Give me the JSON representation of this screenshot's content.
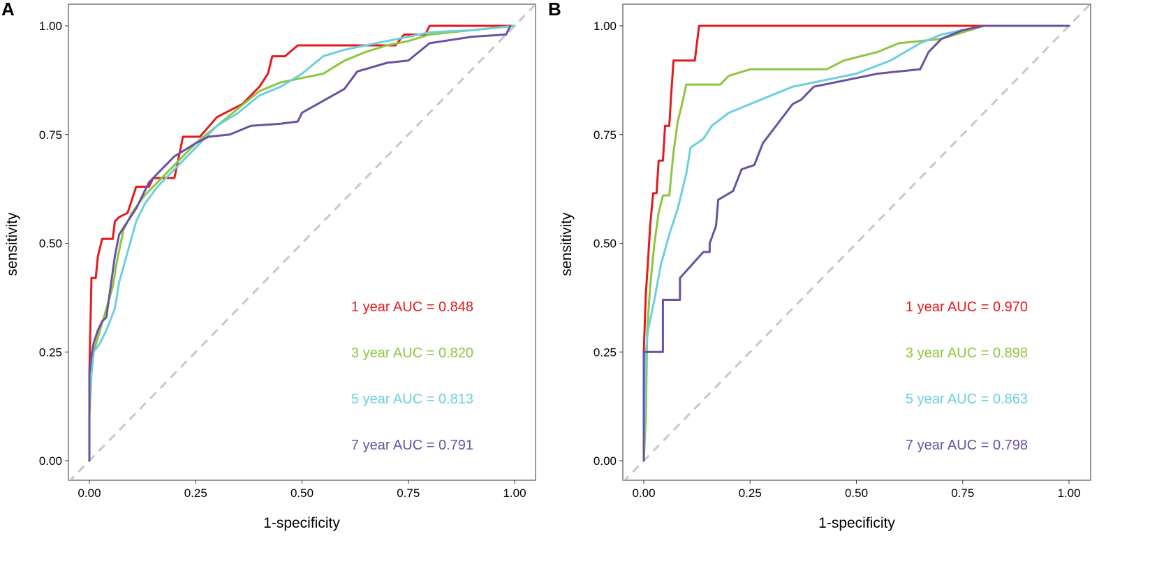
{
  "chart_data": [
    {
      "panel_label": "A",
      "type": "line",
      "xlabel": "1-specificity",
      "ylabel": "sensitivity",
      "xlim": [
        0,
        1
      ],
      "ylim": [
        0,
        1
      ],
      "x_ticks": [
        "0.00",
        "0.25",
        "0.50",
        "0.75",
        "1.00"
      ],
      "y_ticks": [
        "0.00",
        "0.25",
        "0.50",
        "0.75",
        "1.00"
      ],
      "grid": false,
      "reference_line": "diagonal",
      "series": [
        {
          "name": "1 year",
          "label": "1 year AUC = 0.848",
          "auc": 0.848,
          "color": "#e41a1c",
          "points": [
            [
              0,
              0
            ],
            [
              0,
              0.2
            ],
            [
              0.005,
              0.42
            ],
            [
              0.015,
              0.42
            ],
            [
              0.02,
              0.47
            ],
            [
              0.03,
              0.51
            ],
            [
              0.055,
              0.51
            ],
            [
              0.06,
              0.55
            ],
            [
              0.07,
              0.56
            ],
            [
              0.09,
              0.57
            ],
            [
              0.1,
              0.6
            ],
            [
              0.11,
              0.63
            ],
            [
              0.14,
              0.63
            ],
            [
              0.15,
              0.65
            ],
            [
              0.2,
              0.65
            ],
            [
              0.22,
              0.745
            ],
            [
              0.26,
              0.745
            ],
            [
              0.3,
              0.79
            ],
            [
              0.36,
              0.82
            ],
            [
              0.4,
              0.86
            ],
            [
              0.42,
              0.89
            ],
            [
              0.43,
              0.93
            ],
            [
              0.46,
              0.93
            ],
            [
              0.49,
              0.955
            ],
            [
              0.72,
              0.955
            ],
            [
              0.74,
              0.98
            ],
            [
              0.79,
              0.98
            ],
            [
              0.8,
              1.0
            ],
            [
              1.0,
              1.0
            ]
          ]
        },
        {
          "name": "3 year",
          "label": "3 year AUC = 0.820",
          "auc": 0.82,
          "color": "#8dc63f",
          "points": [
            [
              0,
              0.1
            ],
            [
              0.005,
              0.2
            ],
            [
              0.01,
              0.25
            ],
            [
              0.025,
              0.3
            ],
            [
              0.04,
              0.35
            ],
            [
              0.055,
              0.4
            ],
            [
              0.065,
              0.46
            ],
            [
              0.08,
              0.53
            ],
            [
              0.1,
              0.57
            ],
            [
              0.13,
              0.61
            ],
            [
              0.17,
              0.65
            ],
            [
              0.2,
              0.68
            ],
            [
              0.25,
              0.73
            ],
            [
              0.3,
              0.77
            ],
            [
              0.35,
              0.81
            ],
            [
              0.4,
              0.85
            ],
            [
              0.45,
              0.87
            ],
            [
              0.5,
              0.88
            ],
            [
              0.55,
              0.89
            ],
            [
              0.6,
              0.92
            ],
            [
              0.65,
              0.94
            ],
            [
              0.7,
              0.955
            ],
            [
              0.75,
              0.965
            ],
            [
              0.8,
              0.98
            ],
            [
              0.85,
              0.985
            ],
            [
              0.9,
              0.99
            ],
            [
              0.95,
              0.995
            ],
            [
              1.0,
              1.0
            ]
          ]
        },
        {
          "name": "5 year",
          "label": "5 year AUC = 0.813",
          "auc": 0.813,
          "color": "#6ccfe0",
          "points": [
            [
              0,
              0.14
            ],
            [
              0.005,
              0.2
            ],
            [
              0.01,
              0.25
            ],
            [
              0.025,
              0.27
            ],
            [
              0.04,
              0.3
            ],
            [
              0.06,
              0.35
            ],
            [
              0.07,
              0.41
            ],
            [
              0.09,
              0.48
            ],
            [
              0.11,
              0.55
            ],
            [
              0.13,
              0.59
            ],
            [
              0.16,
              0.63
            ],
            [
              0.2,
              0.67
            ],
            [
              0.25,
              0.72
            ],
            [
              0.3,
              0.77
            ],
            [
              0.35,
              0.8
            ],
            [
              0.4,
              0.84
            ],
            [
              0.45,
              0.86
            ],
            [
              0.5,
              0.89
            ],
            [
              0.55,
              0.93
            ],
            [
              0.6,
              0.945
            ],
            [
              0.65,
              0.955
            ],
            [
              0.7,
              0.965
            ],
            [
              0.75,
              0.975
            ],
            [
              0.8,
              0.985
            ],
            [
              0.9,
              0.99
            ],
            [
              1.0,
              1.0
            ]
          ]
        },
        {
          "name": "7 year",
          "label": "7 year AUC = 0.791",
          "auc": 0.791,
          "color": "#6a51a3",
          "points": [
            [
              0,
              0
            ],
            [
              0,
              0.2
            ],
            [
              0.005,
              0.24
            ],
            [
              0.01,
              0.27
            ],
            [
              0.02,
              0.3
            ],
            [
              0.03,
              0.32
            ],
            [
              0.04,
              0.33
            ],
            [
              0.05,
              0.4
            ],
            [
              0.06,
              0.47
            ],
            [
              0.07,
              0.52
            ],
            [
              0.09,
              0.55
            ],
            [
              0.11,
              0.58
            ],
            [
              0.14,
              0.64
            ],
            [
              0.17,
              0.67
            ],
            [
              0.2,
              0.7
            ],
            [
              0.25,
              0.73
            ],
            [
              0.28,
              0.745
            ],
            [
              0.33,
              0.75
            ],
            [
              0.38,
              0.77
            ],
            [
              0.45,
              0.775
            ],
            [
              0.49,
              0.78
            ],
            [
              0.5,
              0.8
            ],
            [
              0.6,
              0.855
            ],
            [
              0.63,
              0.895
            ],
            [
              0.7,
              0.915
            ],
            [
              0.75,
              0.92
            ],
            [
              0.8,
              0.96
            ],
            [
              0.9,
              0.975
            ],
            [
              0.98,
              0.98
            ],
            [
              0.99,
              1.0
            ]
          ]
        }
      ]
    },
    {
      "panel_label": "B",
      "type": "line",
      "xlabel": "1-specificity",
      "ylabel": "sensitivity",
      "xlim": [
        0,
        1
      ],
      "ylim": [
        0,
        1
      ],
      "x_ticks": [
        "0.00",
        "0.25",
        "0.50",
        "0.75",
        "1.00"
      ],
      "y_ticks": [
        "0.00",
        "0.25",
        "0.50",
        "0.75",
        "1.00"
      ],
      "grid": false,
      "reference_line": "diagonal",
      "series": [
        {
          "name": "1 year",
          "label": "1 year AUC = 0.970",
          "auc": 0.97,
          "color": "#e41a1c",
          "points": [
            [
              0,
              0
            ],
            [
              0,
              0.25
            ],
            [
              0.005,
              0.385
            ],
            [
              0.01,
              0.46
            ],
            [
              0.015,
              0.54
            ],
            [
              0.022,
              0.615
            ],
            [
              0.03,
              0.615
            ],
            [
              0.035,
              0.69
            ],
            [
              0.045,
              0.69
            ],
            [
              0.05,
              0.77
            ],
            [
              0.06,
              0.77
            ],
            [
              0.065,
              0.85
            ],
            [
              0.07,
              0.92
            ],
            [
              0.12,
              0.92
            ],
            [
              0.13,
              1.0
            ],
            [
              1.0,
              1.0
            ]
          ]
        },
        {
          "name": "3 year",
          "label": "3 year AUC = 0.898",
          "auc": 0.898,
          "color": "#8dc63f",
          "points": [
            [
              0,
              0
            ],
            [
              0.005,
              0.1
            ],
            [
              0.008,
              0.3
            ],
            [
              0.015,
              0.4
            ],
            [
              0.025,
              0.5
            ],
            [
              0.035,
              0.57
            ],
            [
              0.045,
              0.61
            ],
            [
              0.06,
              0.61
            ],
            [
              0.07,
              0.71
            ],
            [
              0.08,
              0.78
            ],
            [
              0.09,
              0.82
            ],
            [
              0.1,
              0.865
            ],
            [
              0.18,
              0.865
            ],
            [
              0.2,
              0.885
            ],
            [
              0.25,
              0.9
            ],
            [
              0.43,
              0.9
            ],
            [
              0.47,
              0.92
            ],
            [
              0.55,
              0.94
            ],
            [
              0.6,
              0.96
            ],
            [
              0.7,
              0.97
            ],
            [
              0.75,
              0.985
            ],
            [
              0.8,
              1.0
            ],
            [
              1.0,
              1.0
            ]
          ]
        },
        {
          "name": "5 year",
          "label": "5 year AUC = 0.863",
          "auc": 0.863,
          "color": "#6ccfe0",
          "points": [
            [
              0,
              0
            ],
            [
              0.005,
              0.25
            ],
            [
              0.01,
              0.3
            ],
            [
              0.025,
              0.37
            ],
            [
              0.04,
              0.45
            ],
            [
              0.06,
              0.52
            ],
            [
              0.08,
              0.58
            ],
            [
              0.09,
              0.62
            ],
            [
              0.1,
              0.66
            ],
            [
              0.11,
              0.72
            ],
            [
              0.14,
              0.74
            ],
            [
              0.16,
              0.77
            ],
            [
              0.2,
              0.8
            ],
            [
              0.25,
              0.82
            ],
            [
              0.3,
              0.84
            ],
            [
              0.35,
              0.86
            ],
            [
              0.4,
              0.87
            ],
            [
              0.45,
              0.88
            ],
            [
              0.5,
              0.89
            ],
            [
              0.58,
              0.92
            ],
            [
              0.65,
              0.96
            ],
            [
              0.7,
              0.98
            ],
            [
              0.8,
              1.0
            ],
            [
              1.0,
              1.0
            ]
          ]
        },
        {
          "name": "7 year",
          "label": "7 year AUC = 0.798",
          "auc": 0.798,
          "color": "#6a51a3",
          "points": [
            [
              0,
              0
            ],
            [
              0,
              0.25
            ],
            [
              0.045,
              0.25
            ],
            [
              0.045,
              0.37
            ],
            [
              0.085,
              0.37
            ],
            [
              0.085,
              0.42
            ],
            [
              0.14,
              0.48
            ],
            [
              0.155,
              0.48
            ],
            [
              0.155,
              0.5
            ],
            [
              0.17,
              0.54
            ],
            [
              0.175,
              0.6
            ],
            [
              0.21,
              0.62
            ],
            [
              0.23,
              0.67
            ],
            [
              0.26,
              0.68
            ],
            [
              0.28,
              0.73
            ],
            [
              0.35,
              0.82
            ],
            [
              0.37,
              0.83
            ],
            [
              0.4,
              0.86
            ],
            [
              0.45,
              0.87
            ],
            [
              0.5,
              0.88
            ],
            [
              0.55,
              0.89
            ],
            [
              0.65,
              0.9
            ],
            [
              0.67,
              0.94
            ],
            [
              0.7,
              0.97
            ],
            [
              0.75,
              0.99
            ],
            [
              0.8,
              1.0
            ],
            [
              1.0,
              1.0
            ]
          ]
        }
      ]
    }
  ]
}
